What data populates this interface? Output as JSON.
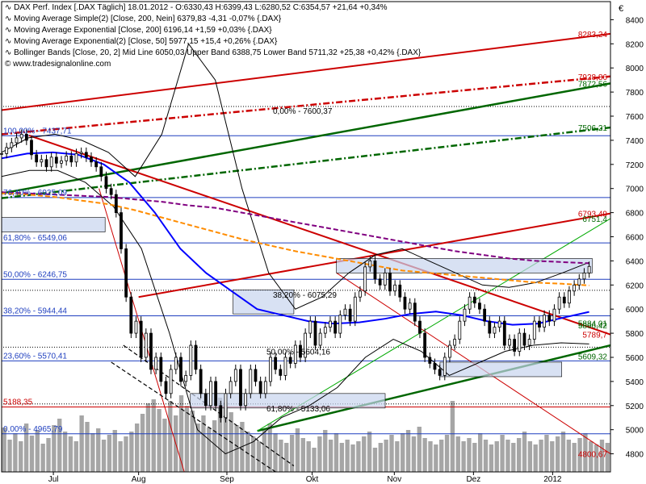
{
  "chart_data": {
    "type": "line",
    "currency_symbol": "€",
    "legend": [
      {
        "text": "DAX Perf. Index [.DAX Täglich] 18.01.2012 - O:6330,43 H:6399,43 L:6280,52 C:6354,57 +21,64 +0,34%",
        "color": "#000000"
      },
      {
        "text": "Moving Average Simple(2) [Close, 200, Nein] 6379,83 -4,31 -0,07% {.DAX}",
        "color": "#800080"
      },
      {
        "text": "Moving Average Exponential [Close, 200] 6196,14 +1,59 +0,03% {.DAX}",
        "color": "#ff8c00"
      },
      {
        "text": "Moving Average Exponential(2) [Close, 50] 5977,15 +15,4 +0,26% {.DAX}",
        "color": "#0000ff"
      },
      {
        "text": "Bollinger Bands [Close, 20, 2] Mid Line 6050,03 Upper Band 6388,75 Lower Band 5711,32 +25,38 +0,42% {.DAX}",
        "color": "#000000"
      }
    ],
    "watermark": "www.tradesignalonline.com",
    "y_axis": {
      "min": 4650,
      "max": 8550,
      "ticks": [
        4800,
        5000,
        5200,
        5400,
        5600,
        5800,
        6000,
        6200,
        6400,
        6600,
        6800,
        7000,
        7200,
        7400,
        7600,
        7800,
        8000,
        8200,
        8400
      ],
      "tick_labels": [
        "4800",
        "5000",
        "5200",
        "5400",
        "5600",
        "5800",
        "6000",
        "6200",
        "6400",
        "6600",
        "6800",
        "7000",
        "7200",
        "7400",
        "7600",
        "7800",
        "8000",
        "8200",
        "8400"
      ]
    },
    "x_axis": {
      "labels": [
        "Jul",
        "Aug",
        "Sep",
        "Okt",
        "Nov",
        "Dez",
        "2012"
      ],
      "positions": [
        0.085,
        0.225,
        0.37,
        0.51,
        0.645,
        0.775,
        0.905
      ]
    },
    "fib_levels": [
      {
        "label": "100,00% - 7437,71",
        "value": 7437.71
      },
      {
        "label": "76,40% - 6925,09",
        "value": 6925.09
      },
      {
        "label": "61,80% - 6549,06",
        "value": 6549.06
      },
      {
        "label": "50,00% - 6246,75",
        "value": 6246.75
      },
      {
        "label": "38,20% - 5944,44",
        "value": 5944.44
      },
      {
        "label": "23,60% - 5570,41",
        "value": 5570.41
      },
      {
        "label": "5188,35",
        "value": 5188.35
      },
      {
        "label": "0,00% - 4965,79",
        "value": 4965.79
      }
    ],
    "inner_fib_labels": [
      {
        "label": "0,00% - 7600,37",
        "value": 7600.37
      },
      {
        "label": "38,20% - 6075,29",
        "value": 6075.29
      },
      {
        "label": "50,00% - 5604,16",
        "value": 5604.16
      },
      {
        "label": "61,80% - 5133,06",
        "value": 5133.06
      }
    ],
    "right_labels": [
      {
        "text": "8283,24",
        "value": 8283.24,
        "color": "#cc0000"
      },
      {
        "text": "7928,86",
        "value": 7928.86,
        "color": "#cc0000"
      },
      {
        "text": "7872,56",
        "value": 7872.56,
        "color": "#006600"
      },
      {
        "text": "7506,21",
        "value": 7506.21,
        "color": "#006600"
      },
      {
        "text": "6793,49",
        "value": 6793.49,
        "color": "#cc0000"
      },
      {
        "text": "6751,4",
        "value": 6751.4,
        "color": "#006600"
      },
      {
        "text": "5884,01",
        "value": 5884.01,
        "color": "#006600"
      },
      {
        "text": "5866,42",
        "value": 5866.42,
        "color": "#006600"
      },
      {
        "text": "5789,7",
        "value": 5789.7,
        "color": "#cc0000"
      },
      {
        "text": "5609,32",
        "value": 5609.32,
        "color": "#006600"
      },
      {
        "text": "4800,67",
        "value": 4800.67,
        "color": "#cc0000"
      }
    ],
    "price_close": [
      7290,
      7340,
      7380,
      7420,
      7450,
      7400,
      7280,
      7220,
      7240,
      7180,
      7260,
      7210,
      7230,
      7270,
      7220,
      7290,
      7300,
      7260,
      7220,
      7180,
      7100,
      7000,
      6950,
      6800,
      6500,
      6100,
      5800,
      5900,
      5600,
      5800,
      5500,
      5600,
      5400,
      5300,
      5500,
      5600,
      5400,
      5450,
      5700,
      5500,
      5300,
      5200,
      5400,
      5200,
      5100,
      5300,
      5400,
      5500,
      5200,
      5300,
      5500,
      5400,
      5300,
      5400,
      5600,
      5500,
      5450,
      5600,
      5550,
      5700,
      5600,
      5800,
      5900,
      5700,
      5800,
      5850,
      5900,
      5800,
      5950,
      6000,
      5900,
      6100,
      6150,
      6350,
      6400,
      6250,
      6200,
      6300,
      6150,
      6200,
      6100,
      6000,
      6050,
      5900,
      5800,
      5600,
      5550,
      5500,
      5450,
      5600,
      5700,
      5750,
      5900,
      6000,
      6100,
      6050,
      6000,
      5900,
      5800,
      5850,
      5900,
      5700,
      5750,
      5650,
      5800,
      5700,
      5750,
      5900,
      5850,
      5950,
      5900,
      6000,
      6100,
      6050,
      6150,
      6200,
      6250,
      6300,
      6354
    ],
    "sma200": [
      6970,
      6960,
      6950,
      6940,
      6930,
      6910,
      6890,
      6860,
      6840,
      6800,
      6760,
      6720,
      6680,
      6640,
      6600,
      6560,
      6520,
      6480,
      6450,
      6420,
      6400,
      6390,
      6380
    ],
    "ema200": [
      6960,
      6950,
      6930,
      6900,
      6870,
      6820,
      6760,
      6700,
      6640,
      6580,
      6530,
      6480,
      6440,
      6400,
      6360,
      6320,
      6300,
      6280,
      6260,
      6240,
      6220,
      6210,
      6196
    ],
    "ema50": [
      7250,
      7290,
      7300,
      7280,
      7200,
      7050,
      6800,
      6500,
      6300,
      6150,
      6000,
      5950,
      5900,
      5880,
      5890,
      5920,
      5960,
      5980,
      5950,
      5900,
      5870,
      5880,
      5930,
      5977
    ],
    "bb_upper": [
      7300,
      7420,
      7450,
      7400,
      7300,
      7100,
      7450,
      8200,
      7900,
      7000,
      6300,
      6000,
      6100,
      6300,
      6450,
      6500,
      6400,
      6300,
      6200,
      6180,
      6220,
      6300,
      6388
    ],
    "bb_lower": [
      7100,
      7150,
      7150,
      7050,
      6850,
      6500,
      5800,
      5000,
      4800,
      4900,
      5100,
      5200,
      5350,
      5600,
      5750,
      5650,
      5450,
      5550,
      5650,
      5700,
      5720,
      5711
    ],
    "volume": [
      55,
      40,
      48,
      38,
      60,
      45,
      52,
      35,
      42,
      58,
      66,
      50,
      44,
      38,
      70,
      62,
      48,
      54,
      40,
      46,
      52,
      38,
      44,
      50,
      60,
      72,
      85,
      90,
      78,
      66,
      88,
      70,
      95,
      82,
      76,
      60,
      70,
      55,
      64,
      92,
      86,
      74,
      58,
      62,
      50,
      44,
      38,
      52,
      60,
      48,
      40,
      36,
      46,
      54,
      42,
      38,
      30,
      44,
      52,
      40,
      48,
      36,
      40,
      34,
      38,
      44,
      50,
      30,
      36,
      40,
      46,
      38,
      48,
      52,
      44,
      56,
      42,
      38,
      34,
      40,
      46,
      88,
      44,
      38,
      42,
      36,
      48,
      40,
      34,
      38,
      46,
      40,
      36,
      42,
      50,
      38,
      34,
      40,
      46,
      38,
      44,
      50,
      40,
      36,
      42,
      48,
      38,
      34,
      40,
      36
    ]
  }
}
